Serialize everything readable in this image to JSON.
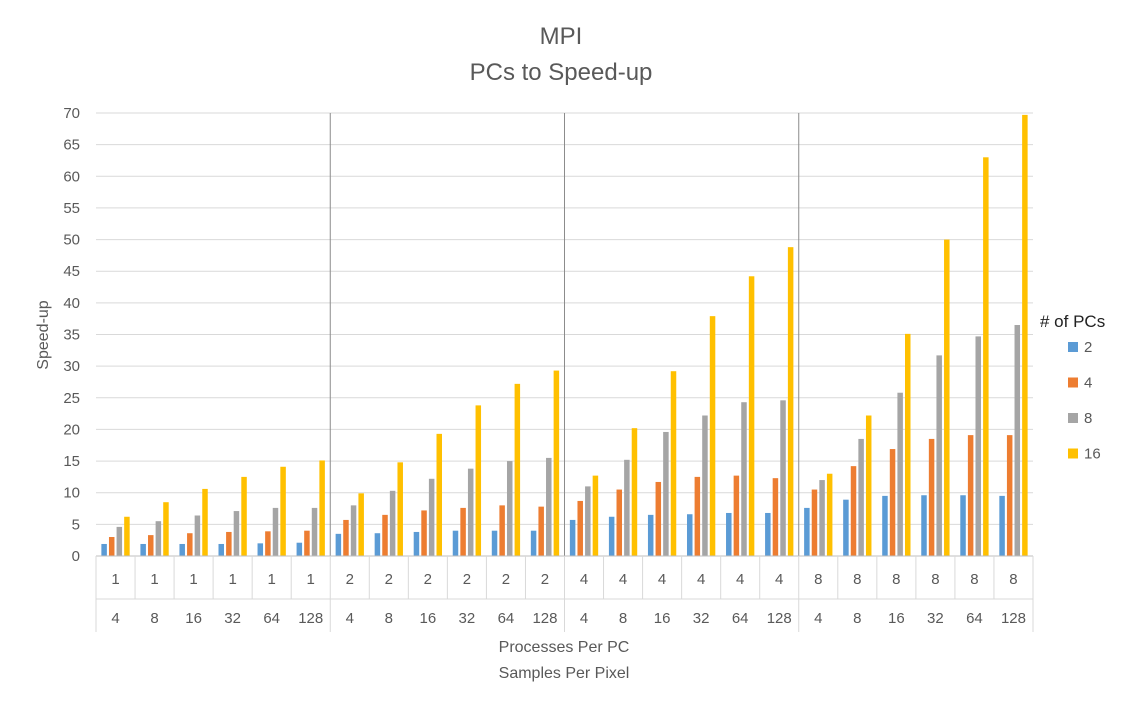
{
  "chart_data": {
    "type": "bar",
    "title": "MPI",
    "subtitle": "PCs to Speed-up",
    "ylabel": "Speed-up",
    "xlabel": "Processes Per PC",
    "xlabel2": "Samples Per Pixel",
    "ylim": [
      0,
      70
    ],
    "yticks": [
      0,
      5,
      10,
      15,
      20,
      25,
      30,
      35,
      40,
      45,
      50,
      55,
      60,
      65,
      70
    ],
    "grid": true,
    "legend_title": "# of PCs",
    "legend_position": "right",
    "categories_outer": [
      "1",
      "1",
      "1",
      "1",
      "1",
      "1",
      "2",
      "2",
      "2",
      "2",
      "2",
      "2",
      "4",
      "4",
      "4",
      "4",
      "4",
      "4",
      "8",
      "8",
      "8",
      "8",
      "8",
      "8"
    ],
    "categories_inner": [
      "4",
      "8",
      "16",
      "32",
      "64",
      "128",
      "4",
      "8",
      "16",
      "32",
      "64",
      "128",
      "4",
      "8",
      "16",
      "32",
      "64",
      "128",
      "4",
      "8",
      "16",
      "32",
      "64",
      "128"
    ],
    "series": [
      {
        "name": "2",
        "color": "#5B9BD5",
        "values": [
          1.9,
          1.9,
          1.9,
          1.9,
          2.0,
          2.1,
          3.5,
          3.6,
          3.8,
          4.0,
          4.0,
          4.0,
          5.7,
          6.2,
          6.5,
          6.6,
          6.8,
          6.8,
          7.6,
          8.9,
          9.5,
          9.6,
          9.6,
          9.5
        ]
      },
      {
        "name": "4",
        "color": "#ED7D31",
        "values": [
          3.0,
          3.3,
          3.6,
          3.8,
          3.9,
          4.0,
          5.7,
          6.5,
          7.2,
          7.6,
          8.0,
          7.8,
          8.7,
          10.5,
          11.7,
          12.5,
          12.7,
          12.3,
          10.5,
          14.2,
          16.9,
          18.5,
          19.1,
          19.1
        ]
      },
      {
        "name": "8",
        "color": "#A5A5A5",
        "values": [
          4.6,
          5.5,
          6.4,
          7.1,
          7.6,
          7.6,
          8.0,
          10.3,
          12.2,
          13.8,
          15.0,
          15.5,
          11.0,
          15.2,
          19.6,
          22.2,
          24.3,
          24.6,
          12.0,
          18.5,
          25.8,
          31.7,
          34.7,
          36.5
        ]
      },
      {
        "name": "16",
        "color": "#FFC000",
        "values": [
          6.2,
          8.5,
          10.6,
          12.5,
          14.1,
          15.1,
          9.9,
          14.8,
          19.3,
          23.8,
          27.2,
          29.3,
          12.7,
          20.2,
          29.2,
          37.9,
          44.2,
          48.8,
          13.0,
          22.2,
          35.1,
          50.0,
          63.0,
          69.7
        ]
      }
    ]
  }
}
